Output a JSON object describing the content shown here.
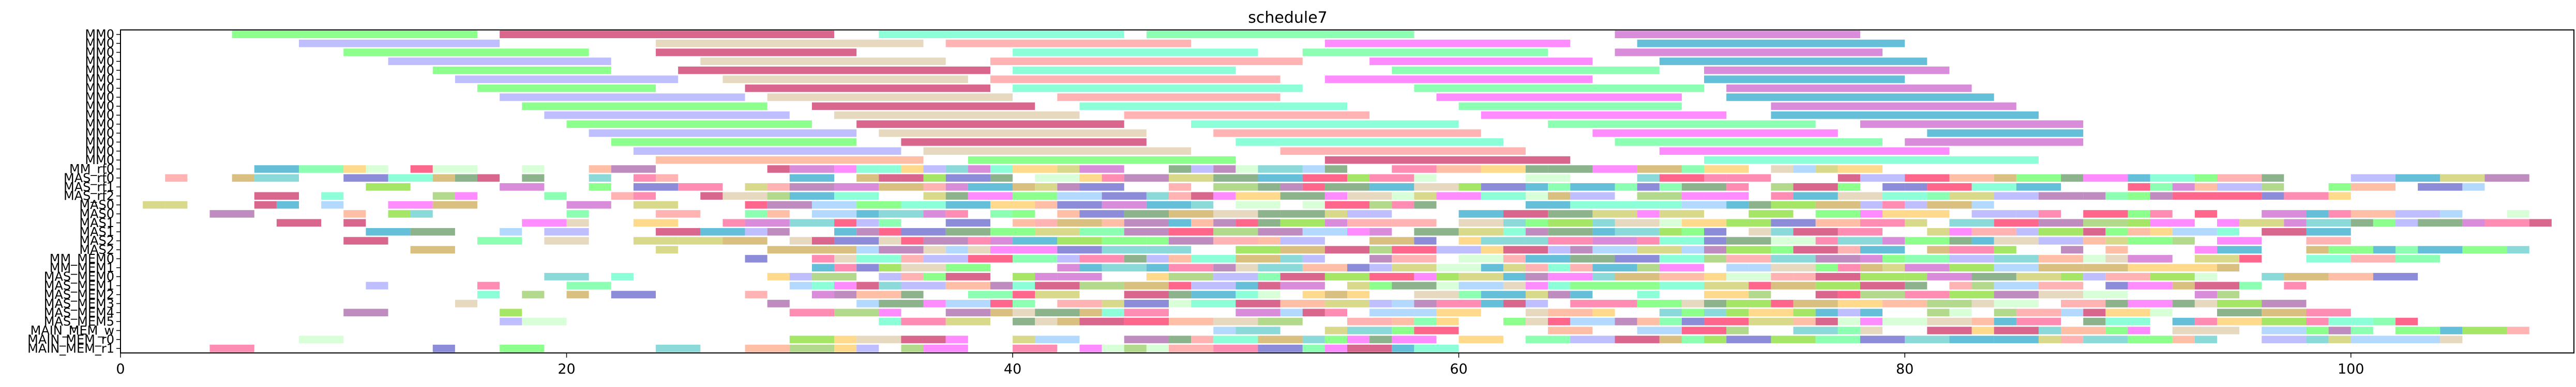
{
  "chart_data": {
    "type": "gantt",
    "title": "schedule7",
    "xlabel": "",
    "ylabel": "",
    "xlim": [
      0,
      110
    ],
    "xticks": [
      0,
      20,
      40,
      60,
      80,
      100
    ],
    "grid": false,
    "rows": [
      "MM0",
      "MM0",
      "MM0",
      "MM0",
      "MM0",
      "MM0",
      "MM0",
      "MM0",
      "MM0",
      "MM0",
      "MM0",
      "MM0",
      "MM0",
      "MM0",
      "MM0",
      "MM_rf0",
      "MAS_rf0",
      "MAS_rf1",
      "MAS_rf2",
      "MAS0",
      "MAS0",
      "MAS1",
      "MAS1",
      "MAS2",
      "MAS2",
      "MM_MEM0",
      "MM_MEM1",
      "MAS_MEM0",
      "MAS_MEM1",
      "MAS_MEM2",
      "MAS_MEM3",
      "MAS_MEM4",
      "MAS_MEM5",
      "MAIN_MEM_w",
      "MAIN_MEM_r0",
      "MAIN_MEM_r1"
    ],
    "palette": [
      "#66ff66",
      "#ccffcc",
      "#ff9999",
      "#6666cc",
      "#cc66cc",
      "#ffcc66",
      "#99ccff",
      "#cc3366",
      "#99cc66",
      "#ff66ff",
      "#66cccc",
      "#ccaa55",
      "#aaaaff",
      "#ff6699",
      "#66ffcc",
      "#cccc66",
      "#33aacc",
      "#ffaa88",
      "#669966",
      "#ddccaa",
      "#aa66aa",
      "#66ff99",
      "#ff3366",
      "#88dd33"
    ],
    "tasks": [
      {
        "row": 0,
        "start": 5,
        "end": 16
      },
      {
        "row": 0,
        "start": 17,
        "end": 32
      },
      {
        "row": 0,
        "start": 34,
        "end": 45
      },
      {
        "row": 0,
        "start": 46,
        "end": 58
      },
      {
        "row": 0,
        "start": 67,
        "end": 78
      },
      {
        "row": 1,
        "start": 8,
        "end": 17
      },
      {
        "row": 1,
        "start": 24,
        "end": 36
      },
      {
        "row": 1,
        "start": 37,
        "end": 48
      },
      {
        "row": 1,
        "start": 54,
        "end": 65
      },
      {
        "row": 1,
        "start": 68,
        "end": 80
      },
      {
        "row": 2,
        "start": 10,
        "end": 21
      },
      {
        "row": 2,
        "start": 24,
        "end": 33
      },
      {
        "row": 2,
        "start": 40,
        "end": 51
      },
      {
        "row": 2,
        "start": 53,
        "end": 64
      },
      {
        "row": 2,
        "start": 67,
        "end": 79
      },
      {
        "row": 3,
        "start": 12,
        "end": 22
      },
      {
        "row": 3,
        "start": 26,
        "end": 37
      },
      {
        "row": 3,
        "start": 39,
        "end": 53
      },
      {
        "row": 3,
        "start": 56,
        "end": 66
      },
      {
        "row": 3,
        "start": 69,
        "end": 81
      },
      {
        "row": 4,
        "start": 14,
        "end": 22
      },
      {
        "row": 4,
        "start": 25,
        "end": 39
      },
      {
        "row": 4,
        "start": 40,
        "end": 50
      },
      {
        "row": 4,
        "start": 57,
        "end": 69
      },
      {
        "row": 4,
        "start": 71,
        "end": 82
      },
      {
        "row": 5,
        "start": 15,
        "end": 25
      },
      {
        "row": 5,
        "start": 27,
        "end": 38
      },
      {
        "row": 5,
        "start": 39,
        "end": 52
      },
      {
        "row": 5,
        "start": 54,
        "end": 66
      },
      {
        "row": 5,
        "start": 71,
        "end": 80
      },
      {
        "row": 6,
        "start": 16,
        "end": 24
      },
      {
        "row": 6,
        "start": 28,
        "end": 39
      },
      {
        "row": 6,
        "start": 40,
        "end": 53
      },
      {
        "row": 6,
        "start": 58,
        "end": 71
      },
      {
        "row": 6,
        "start": 72,
        "end": 83
      },
      {
        "row": 7,
        "start": 17,
        "end": 28
      },
      {
        "row": 7,
        "start": 29,
        "end": 40
      },
      {
        "row": 7,
        "start": 42,
        "end": 52
      },
      {
        "row": 7,
        "start": 59,
        "end": 70
      },
      {
        "row": 7,
        "start": 72,
        "end": 84
      },
      {
        "row": 8,
        "start": 18,
        "end": 29
      },
      {
        "row": 8,
        "start": 31,
        "end": 41
      },
      {
        "row": 8,
        "start": 43,
        "end": 55
      },
      {
        "row": 8,
        "start": 60,
        "end": 70
      },
      {
        "row": 8,
        "start": 74,
        "end": 85
      },
      {
        "row": 9,
        "start": 19,
        "end": 30
      },
      {
        "row": 9,
        "start": 32,
        "end": 43
      },
      {
        "row": 9,
        "start": 45,
        "end": 56
      },
      {
        "row": 9,
        "start": 61,
        "end": 72
      },
      {
        "row": 9,
        "start": 74,
        "end": 86
      },
      {
        "row": 10,
        "start": 20,
        "end": 31
      },
      {
        "row": 10,
        "start": 33,
        "end": 45
      },
      {
        "row": 10,
        "start": 48,
        "end": 60
      },
      {
        "row": 10,
        "start": 64,
        "end": 76
      },
      {
        "row": 10,
        "start": 78,
        "end": 88
      },
      {
        "row": 11,
        "start": 21,
        "end": 33
      },
      {
        "row": 11,
        "start": 34,
        "end": 46
      },
      {
        "row": 11,
        "start": 49,
        "end": 61
      },
      {
        "row": 11,
        "start": 66,
        "end": 77
      },
      {
        "row": 11,
        "start": 81,
        "end": 88
      },
      {
        "row": 12,
        "start": 22,
        "end": 33
      },
      {
        "row": 12,
        "start": 35,
        "end": 46
      },
      {
        "row": 12,
        "start": 50,
        "end": 62
      },
      {
        "row": 12,
        "start": 67,
        "end": 79
      },
      {
        "row": 12,
        "start": 80,
        "end": 88
      },
      {
        "row": 13,
        "start": 23,
        "end": 35
      },
      {
        "row": 13,
        "start": 36,
        "end": 48
      },
      {
        "row": 13,
        "start": 52,
        "end": 63
      },
      {
        "row": 13,
        "start": 69,
        "end": 82
      },
      {
        "row": 14,
        "start": 24,
        "end": 36
      },
      {
        "row": 14,
        "start": 38,
        "end": 50
      },
      {
        "row": 14,
        "start": 54,
        "end": 65
      },
      {
        "row": 14,
        "start": 71,
        "end": 86
      }
    ],
    "dense_rows": [
      {
        "row": 15,
        "start": 4,
        "end": 80
      },
      {
        "row": 16,
        "start": 0,
        "end": 108
      },
      {
        "row": 17,
        "start": 6,
        "end": 106
      },
      {
        "row": 18,
        "start": 6,
        "end": 100
      },
      {
        "row": 19,
        "start": 1,
        "end": 84
      },
      {
        "row": 20,
        "start": 2,
        "end": 108
      },
      {
        "row": 21,
        "start": 7,
        "end": 109
      },
      {
        "row": 22,
        "start": 11,
        "end": 100
      },
      {
        "row": 23,
        "start": 7,
        "end": 102
      },
      {
        "row": 24,
        "start": 10,
        "end": 108
      },
      {
        "row": 25,
        "start": 28,
        "end": 104
      },
      {
        "row": 26,
        "start": 30,
        "end": 95
      },
      {
        "row": 27,
        "start": 7,
        "end": 103
      },
      {
        "row": 28,
        "start": 7,
        "end": 98
      },
      {
        "row": 29,
        "start": 12,
        "end": 95
      },
      {
        "row": 30,
        "start": 12,
        "end": 98
      },
      {
        "row": 31,
        "start": 8,
        "end": 100
      },
      {
        "row": 32,
        "start": 7,
        "end": 103
      },
      {
        "row": 33,
        "start": 49,
        "end": 108
      },
      {
        "row": 34,
        "start": 0,
        "end": 105
      },
      {
        "row": 35,
        "start": 0,
        "end": 60
      }
    ]
  }
}
